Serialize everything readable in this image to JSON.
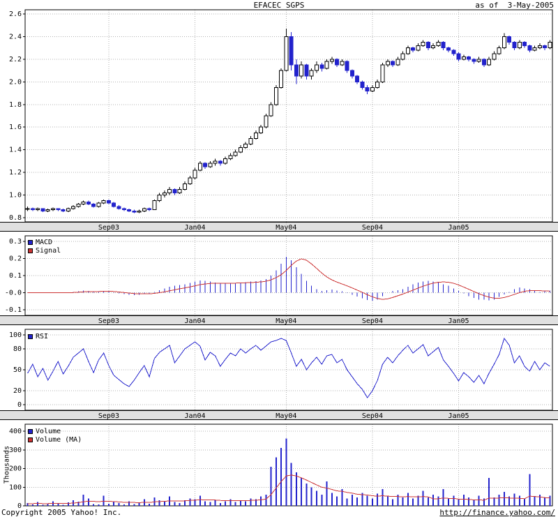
{
  "header": {
    "title": "EFACEC SGPS",
    "as_of": "as of  3-May-2005"
  },
  "footer": {
    "copyright": "Copyright 2005 Yahoo! Inc.",
    "url": "http://finance.yahoo.com/"
  },
  "colors": {
    "blue": "#2222cc",
    "red": "#cc3333",
    "band_bg": "#e0e0e0",
    "grid": "#b0b0b0",
    "up_fill": "#ffffff",
    "up_stroke": "#000000"
  },
  "chart_data": [
    {
      "type": "candlestick",
      "title": "EFACEC SGPS",
      "ylim": [
        0.8,
        2.6
      ],
      "yticks": [
        2.6,
        2.4,
        2.2,
        2.0,
        1.8,
        1.6,
        1.4,
        1.2,
        1.0,
        0.8
      ],
      "ytick_labels": [
        "2.6",
        "2.4",
        "2.2",
        "2.0",
        "1.8",
        "1.6",
        "1.4",
        "1.2",
        "1.0",
        "0.8"
      ],
      "xticks": [
        {
          "label": "Sep03",
          "i": 16
        },
        {
          "label": "Jan04",
          "i": 33
        },
        {
          "label": "May04",
          "i": 51
        },
        {
          "label": "Sep04",
          "i": 68
        },
        {
          "label": "Jan05",
          "i": 85
        }
      ],
      "ohlc": [
        [
          0.88,
          0.9,
          0.86,
          0.88
        ],
        [
          0.88,
          0.89,
          0.86,
          0.87
        ],
        [
          0.87,
          0.89,
          0.86,
          0.88
        ],
        [
          0.88,
          0.88,
          0.85,
          0.86
        ],
        [
          0.86,
          0.88,
          0.85,
          0.87
        ],
        [
          0.87,
          0.89,
          0.86,
          0.88
        ],
        [
          0.88,
          0.88,
          0.86,
          0.87
        ],
        [
          0.87,
          0.88,
          0.85,
          0.86
        ],
        [
          0.86,
          0.89,
          0.85,
          0.88
        ],
        [
          0.88,
          0.91,
          0.87,
          0.9
        ],
        [
          0.9,
          0.93,
          0.89,
          0.92
        ],
        [
          0.92,
          0.95,
          0.91,
          0.94
        ],
        [
          0.94,
          0.95,
          0.91,
          0.92
        ],
        [
          0.92,
          0.93,
          0.89,
          0.9
        ],
        [
          0.9,
          0.94,
          0.89,
          0.93
        ],
        [
          0.93,
          0.96,
          0.92,
          0.95
        ],
        [
          0.95,
          0.96,
          0.92,
          0.93
        ],
        [
          0.93,
          0.94,
          0.89,
          0.9
        ],
        [
          0.9,
          0.91,
          0.87,
          0.88
        ],
        [
          0.88,
          0.89,
          0.86,
          0.87
        ],
        [
          0.87,
          0.88,
          0.85,
          0.86
        ],
        [
          0.86,
          0.87,
          0.84,
          0.85
        ],
        [
          0.85,
          0.87,
          0.84,
          0.86
        ],
        [
          0.86,
          0.89,
          0.85,
          0.88
        ],
        [
          0.88,
          0.89,
          0.86,
          0.87
        ],
        [
          0.87,
          0.96,
          0.87,
          0.95
        ],
        [
          0.95,
          1.02,
          0.94,
          1.0
        ],
        [
          1.0,
          1.04,
          0.98,
          1.02
        ],
        [
          1.02,
          1.07,
          1.0,
          1.05
        ],
        [
          1.05,
          1.06,
          1.0,
          1.02
        ],
        [
          1.02,
          1.07,
          1.01,
          1.05
        ],
        [
          1.05,
          1.12,
          1.04,
          1.1
        ],
        [
          1.1,
          1.17,
          1.09,
          1.15
        ],
        [
          1.15,
          1.24,
          1.14,
          1.22
        ],
        [
          1.22,
          1.3,
          1.21,
          1.28
        ],
        [
          1.28,
          1.29,
          1.23,
          1.25
        ],
        [
          1.25,
          1.3,
          1.24,
          1.28
        ],
        [
          1.28,
          1.32,
          1.26,
          1.3
        ],
        [
          1.3,
          1.31,
          1.26,
          1.28
        ],
        [
          1.28,
          1.34,
          1.27,
          1.32
        ],
        [
          1.32,
          1.37,
          1.31,
          1.35
        ],
        [
          1.35,
          1.4,
          1.34,
          1.38
        ],
        [
          1.38,
          1.44,
          1.37,
          1.42
        ],
        [
          1.42,
          1.47,
          1.41,
          1.45
        ],
        [
          1.45,
          1.52,
          1.44,
          1.5
        ],
        [
          1.5,
          1.57,
          1.49,
          1.55
        ],
        [
          1.55,
          1.62,
          1.54,
          1.6
        ],
        [
          1.6,
          1.72,
          1.59,
          1.7
        ],
        [
          1.7,
          1.82,
          1.69,
          1.8
        ],
        [
          1.8,
          1.97,
          1.79,
          1.95
        ],
        [
          1.95,
          2.12,
          1.94,
          2.1
        ],
        [
          2.1,
          2.47,
          2.09,
          2.4
        ],
        [
          2.4,
          2.44,
          2.1,
          2.15
        ],
        [
          2.15,
          2.2,
          1.98,
          2.05
        ],
        [
          2.05,
          2.18,
          2.03,
          2.15
        ],
        [
          2.15,
          2.16,
          2.02,
          2.05
        ],
        [
          2.05,
          2.12,
          2.02,
          2.1
        ],
        [
          2.1,
          2.18,
          2.08,
          2.15
        ],
        [
          2.15,
          2.17,
          2.09,
          2.12
        ],
        [
          2.12,
          2.2,
          2.11,
          2.18
        ],
        [
          2.18,
          2.22,
          2.16,
          2.2
        ],
        [
          2.2,
          2.21,
          2.13,
          2.15
        ],
        [
          2.15,
          2.2,
          2.14,
          2.18
        ],
        [
          2.18,
          2.19,
          2.08,
          2.1
        ],
        [
          2.1,
          2.11,
          2.03,
          2.05
        ],
        [
          2.05,
          2.06,
          1.98,
          2.0
        ],
        [
          2.0,
          2.01,
          1.93,
          1.95
        ],
        [
          1.95,
          1.97,
          1.89,
          1.92
        ],
        [
          1.92,
          1.97,
          1.91,
          1.95
        ],
        [
          1.95,
          2.02,
          1.94,
          2.0
        ],
        [
          2.0,
          2.17,
          1.99,
          2.15
        ],
        [
          2.15,
          2.2,
          2.13,
          2.18
        ],
        [
          2.18,
          2.19,
          2.13,
          2.15
        ],
        [
          2.15,
          2.22,
          2.14,
          2.2
        ],
        [
          2.2,
          2.27,
          2.19,
          2.25
        ],
        [
          2.25,
          2.32,
          2.24,
          2.3
        ],
        [
          2.3,
          2.31,
          2.26,
          2.28
        ],
        [
          2.28,
          2.34,
          2.27,
          2.32
        ],
        [
          2.32,
          2.37,
          2.31,
          2.35
        ],
        [
          2.35,
          2.36,
          2.28,
          2.3
        ],
        [
          2.3,
          2.34,
          2.29,
          2.32
        ],
        [
          2.32,
          2.37,
          2.31,
          2.35
        ],
        [
          2.35,
          2.36,
          2.28,
          2.3
        ],
        [
          2.3,
          2.31,
          2.26,
          2.28
        ],
        [
          2.28,
          2.29,
          2.23,
          2.25
        ],
        [
          2.25,
          2.26,
          2.18,
          2.2
        ],
        [
          2.2,
          2.24,
          2.19,
          2.22
        ],
        [
          2.22,
          2.23,
          2.18,
          2.2
        ],
        [
          2.2,
          2.21,
          2.16,
          2.18
        ],
        [
          2.18,
          2.22,
          2.17,
          2.2
        ],
        [
          2.2,
          2.21,
          2.13,
          2.15
        ],
        [
          2.15,
          2.22,
          2.14,
          2.2
        ],
        [
          2.2,
          2.27,
          2.19,
          2.25
        ],
        [
          2.25,
          2.32,
          2.24,
          2.3
        ],
        [
          2.3,
          2.43,
          2.29,
          2.4
        ],
        [
          2.4,
          2.41,
          2.33,
          2.35
        ],
        [
          2.35,
          2.36,
          2.28,
          2.3
        ],
        [
          2.3,
          2.37,
          2.29,
          2.35
        ],
        [
          2.35,
          2.36,
          2.3,
          2.32
        ],
        [
          2.32,
          2.33,
          2.26,
          2.28
        ],
        [
          2.28,
          2.32,
          2.27,
          2.3
        ],
        [
          2.3,
          2.34,
          2.29,
          2.32
        ],
        [
          2.32,
          2.33,
          2.28,
          2.3
        ],
        [
          2.3,
          2.37,
          2.29,
          2.35
        ]
      ]
    },
    {
      "type": "bar",
      "name": "MACD",
      "legend": [
        {
          "label": "MACD",
          "color": "#2222cc"
        },
        {
          "label": "Signal",
          "color": "#cc3333"
        }
      ],
      "ylim": [
        -0.1,
        0.3
      ],
      "yticks": [
        0.3,
        0.2,
        0.1,
        0.0,
        -0.1
      ],
      "ytick_labels": [
        "0.3",
        "0.2",
        "0.1",
        "-0.0",
        "-0.1"
      ],
      "macd": [
        0.0,
        0.001,
        0.003,
        0.001,
        -0.002,
        0.0,
        0.002,
        0.0,
        -0.002,
        0.004,
        0.008,
        0.012,
        0.01,
        0.004,
        0.006,
        0.01,
        0.008,
        0.002,
        -0.004,
        -0.008,
        -0.012,
        -0.014,
        -0.012,
        -0.008,
        -0.006,
        0.005,
        0.015,
        0.025,
        0.035,
        0.04,
        0.045,
        0.05,
        0.058,
        0.065,
        0.072,
        0.07,
        0.065,
        0.06,
        0.056,
        0.055,
        0.058,
        0.058,
        0.06,
        0.062,
        0.065,
        0.068,
        0.072,
        0.08,
        0.1,
        0.13,
        0.17,
        0.21,
        0.19,
        0.15,
        0.11,
        0.07,
        0.04,
        0.02,
        0.01,
        0.015,
        0.018,
        0.012,
        0.008,
        -0.002,
        -0.012,
        -0.022,
        -0.032,
        -0.042,
        -0.046,
        -0.04,
        -0.02,
        0.0,
        0.01,
        0.015,
        0.02,
        0.035,
        0.05,
        0.06,
        0.065,
        0.07,
        0.065,
        0.06,
        0.05,
        0.04,
        0.025,
        0.01,
        -0.005,
        -0.02,
        -0.03,
        -0.04,
        -0.04,
        -0.045,
        -0.04,
        -0.025,
        -0.01,
        0.005,
        0.02,
        0.03,
        0.025,
        0.02,
        0.01,
        0.005,
        0.01,
        0.012
      ],
      "signal": [
        0.0,
        0.0,
        0.001,
        0.001,
        0.0,
        0.0,
        0.001,
        0.001,
        0.0,
        0.001,
        0.003,
        0.005,
        0.007,
        0.007,
        0.007,
        0.008,
        0.008,
        0.007,
        0.004,
        0.001,
        -0.002,
        -0.005,
        -0.007,
        -0.007,
        -0.007,
        -0.004,
        0.0,
        0.005,
        0.011,
        0.017,
        0.023,
        0.028,
        0.034,
        0.04,
        0.047,
        0.051,
        0.054,
        0.055,
        0.055,
        0.055,
        0.056,
        0.056,
        0.057,
        0.058,
        0.059,
        0.061,
        0.063,
        0.067,
        0.075,
        0.088,
        0.105,
        0.13,
        0.16,
        0.185,
        0.198,
        0.19,
        0.168,
        0.142,
        0.115,
        0.092,
        0.075,
        0.062,
        0.051,
        0.04,
        0.028,
        0.015,
        0.002,
        -0.012,
        -0.024,
        -0.034,
        -0.039,
        -0.036,
        -0.028,
        -0.018,
        -0.008,
        0.003,
        0.015,
        0.027,
        0.038,
        0.048,
        0.056,
        0.061,
        0.063,
        0.061,
        0.055,
        0.045,
        0.033,
        0.02,
        0.007,
        -0.006,
        -0.017,
        -0.026,
        -0.032,
        -0.033,
        -0.028,
        -0.02,
        -0.01,
        0.0,
        0.008,
        0.012,
        0.013,
        0.012,
        0.01,
        0.009
      ]
    },
    {
      "type": "line",
      "name": "RSI",
      "legend": [
        {
          "label": "RSI",
          "color": "#2222cc"
        }
      ],
      "ylim": [
        0,
        100
      ],
      "yticks": [
        100,
        80,
        50,
        20,
        0
      ],
      "ytick_labels": [
        "100",
        "80",
        "50",
        "20",
        "0"
      ],
      "values": [
        45,
        58,
        40,
        52,
        35,
        48,
        62,
        44,
        55,
        68,
        74,
        80,
        62,
        46,
        64,
        74,
        56,
        42,
        36,
        30,
        26,
        35,
        46,
        56,
        40,
        66,
        75,
        80,
        85,
        60,
        70,
        80,
        85,
        90,
        84,
        64,
        75,
        70,
        55,
        65,
        74,
        70,
        80,
        74,
        80,
        85,
        78,
        84,
        90,
        92,
        95,
        92,
        74,
        55,
        65,
        50,
        60,
        68,
        58,
        70,
        72,
        60,
        65,
        50,
        40,
        30,
        22,
        10,
        20,
        35,
        58,
        68,
        60,
        70,
        78,
        85,
        74,
        80,
        86,
        70,
        76,
        82,
        64,
        55,
        45,
        34,
        46,
        40,
        32,
        42,
        30,
        45,
        58,
        72,
        95,
        85,
        60,
        70,
        55,
        48,
        62,
        50,
        60,
        55
      ]
    },
    {
      "type": "bar",
      "name": "Volume",
      "ylabel": "Thousands",
      "legend": [
        {
          "label": "Volume",
          "color": "#2222cc"
        },
        {
          "label": "Volume (MA)",
          "color": "#cc3333"
        }
      ],
      "ylim": [
        0,
        400
      ],
      "yticks": [
        400,
        300,
        200,
        100,
        0
      ],
      "ytick_labels": [
        "400",
        "300",
        "200",
        "100",
        "0"
      ],
      "volume": [
        15,
        8,
        20,
        5,
        10,
        25,
        12,
        6,
        18,
        30,
        22,
        60,
        40,
        10,
        8,
        55,
        12,
        20,
        15,
        8,
        25,
        10,
        15,
        35,
        12,
        45,
        30,
        25,
        50,
        20,
        15,
        30,
        40,
        35,
        55,
        25,
        20,
        30,
        15,
        25,
        35,
        20,
        30,
        25,
        40,
        35,
        50,
        60,
        210,
        260,
        310,
        360,
        230,
        180,
        150,
        120,
        100,
        80,
        60,
        130,
        70,
        50,
        90,
        40,
        60,
        45,
        70,
        55,
        40,
        65,
        90,
        50,
        35,
        60,
        45,
        70,
        40,
        55,
        80,
        45,
        60,
        50,
        90,
        40,
        55,
        35,
        60,
        45,
        30,
        55,
        40,
        150,
        45,
        60,
        75,
        50,
        65,
        55,
        40,
        170,
        50,
        60,
        45,
        55
      ],
      "volume_ma": [
        12,
        12,
        13,
        12,
        12,
        14,
        14,
        13,
        13,
        15,
        17,
        22,
        25,
        24,
        22,
        25,
        24,
        23,
        21,
        19,
        19,
        18,
        17,
        19,
        18,
        21,
        23,
        24,
        27,
        27,
        26,
        27,
        29,
        30,
        33,
        32,
        31,
        31,
        29,
        28,
        29,
        28,
        28,
        28,
        29,
        30,
        32,
        36,
        60,
        95,
        130,
        160,
        165,
        160,
        150,
        138,
        125,
        112,
        100,
        95,
        88,
        80,
        78,
        72,
        68,
        62,
        60,
        58,
        54,
        52,
        54,
        52,
        50,
        50,
        48,
        50,
        48,
        48,
        50,
        48,
        38,
        38,
        42,
        40,
        40,
        36,
        36,
        34,
        32,
        32,
        30,
        42,
        42,
        42,
        44,
        42,
        42,
        40,
        38,
        52,
        50,
        48,
        44,
        42
      ]
    }
  ]
}
